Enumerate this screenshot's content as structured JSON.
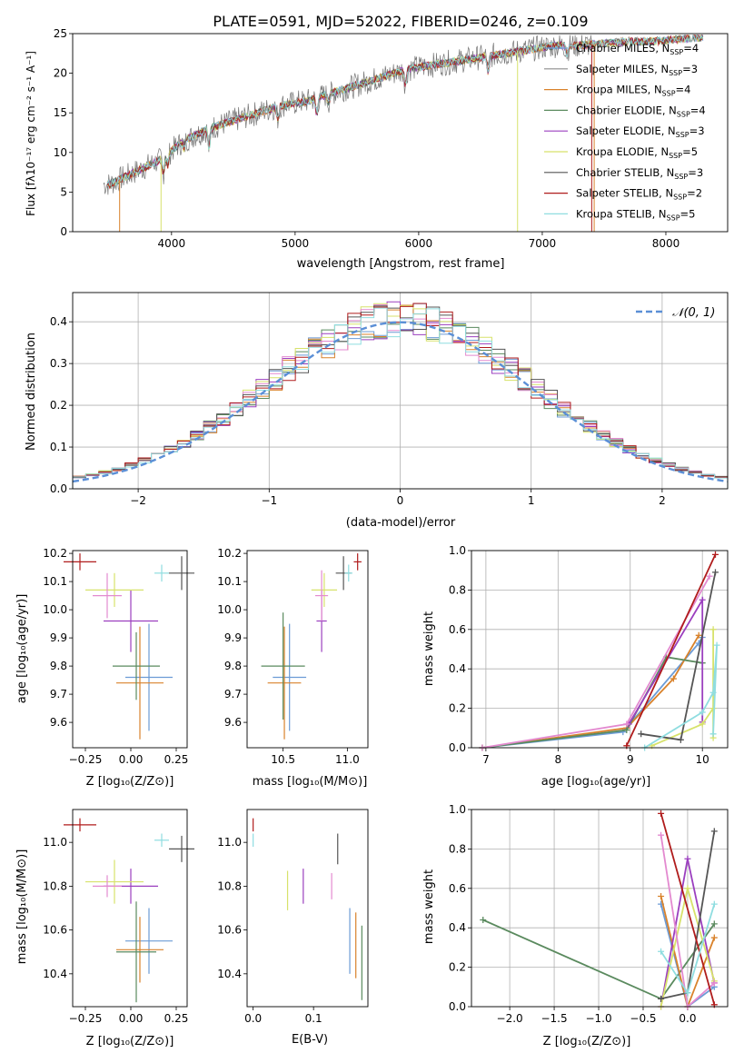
{
  "figure": {
    "title": "PLATE=0591, MJD=52022, FIBERID=0246, z=0.109"
  },
  "colors": {
    "Chabrier MILES": "#6b9bd6",
    "Salpeter MILES": "#8c8c8c",
    "Kroupa MILES": "#d9822b",
    "Chabrier ELODIE": "#5a8a5e",
    "Salpeter ELODIE": "#9b3fbf",
    "Kroupa ELODIE": "#d7e26b",
    "Chabrier STELIB": "#555555",
    "Salpeter STELIB": "#b01c1c",
    "Kroupa STELIB": "#8fdde0",
    "Salpeter MILES errbar": "#e38ad0",
    "Normal": "#5b8fd6"
  },
  "chart_data": [
    {
      "id": "spectrum",
      "type": "line",
      "title": "PLATE=0591, MJD=52022, FIBERID=0246, z=0.109",
      "xlabel": "wavelength [Angstrom, rest frame]",
      "ylabel": "Flux [fλ10⁻¹⁷ erg cm⁻² s⁻¹ A⁻¹]",
      "xlim": [
        3200,
        8500
      ],
      "ylim": [
        0,
        25
      ],
      "xticks": [
        "4000",
        "5000",
        "6000",
        "7000",
        "8000"
      ],
      "yticks": [
        "0",
        "5",
        "10",
        "15",
        "20",
        "25"
      ],
      "legend": [
        "Chabrier MILES, N_SSP=4",
        "Salpeter MILES, N_SSP=3",
        "Kroupa MILES, N_SSP=4",
        "Chabrier ELODIE, N_SSP=4",
        "Salpeter ELODIE, N_SSP=3",
        "Kroupa ELODIE, N_SSP=5",
        "Chabrier STELIB, N_SSP=3",
        "Salpeter STELIB, N_SSP=2",
        "Kroupa STELIB, N_SSP=5"
      ],
      "legend_display": [
        {
          "pre": "Chabrier MILES, N",
          "sub": "SSP",
          "post": "=4"
        },
        {
          "pre": "Salpeter MILES, N",
          "sub": "SSP",
          "post": "=3"
        },
        {
          "pre": "Kroupa MILES, N",
          "sub": "SSP",
          "post": "=4"
        },
        {
          "pre": "Chabrier ELODIE, N",
          "sub": "SSP",
          "post": "=4"
        },
        {
          "pre": "Salpeter ELODIE, N",
          "sub": "SSP",
          "post": "=3"
        },
        {
          "pre": "Kroupa ELODIE, N",
          "sub": "SSP",
          "post": "=5"
        },
        {
          "pre": "Chabrier STELIB, N",
          "sub": "SSP",
          "post": "=3"
        },
        {
          "pre": "Salpeter STELIB, N",
          "sub": "SSP",
          "post": "=2"
        },
        {
          "pre": "Kroupa STELIB, N",
          "sub": "SSP",
          "post": "=5"
        }
      ],
      "legend_colors": [
        "#6b9bd6",
        "#8c8c8c",
        "#d9822b",
        "#5a8a5e",
        "#9b3fbf",
        "#d7e26b",
        "#555555",
        "#b01c1c",
        "#8fdde0"
      ],
      "legend_placement": "right",
      "continuum": [
        [
          3500,
          6.0
        ],
        [
          3700,
          7.5
        ],
        [
          3900,
          9.0
        ],
        [
          4100,
          11.5
        ],
        [
          4300,
          13.0
        ],
        [
          4500,
          14.0
        ],
        [
          4700,
          15.0
        ],
        [
          4900,
          16.0
        ],
        [
          5100,
          16.5
        ],
        [
          5300,
          17.5
        ],
        [
          5500,
          18.5
        ],
        [
          5700,
          19.5
        ],
        [
          5900,
          20.5
        ],
        [
          6100,
          21.0
        ],
        [
          6300,
          21.5
        ],
        [
          6500,
          22.0
        ],
        [
          6700,
          22.5
        ],
        [
          6900,
          23.0
        ],
        [
          7100,
          23.5
        ],
        [
          7300,
          23.5
        ],
        [
          7500,
          23.8
        ],
        [
          7700,
          24.0
        ],
        [
          7900,
          24.0
        ],
        [
          8100,
          24.3
        ],
        [
          8300,
          24.5
        ]
      ],
      "absorption_dips": [
        [
          3934,
          2.0
        ],
        [
          3969,
          1.5
        ],
        [
          4102,
          1.0
        ],
        [
          4304,
          2.5
        ],
        [
          4861,
          1.5
        ],
        [
          5175,
          2.0
        ],
        [
          5270,
          1.0
        ],
        [
          5893,
          2.0
        ],
        [
          6563,
          2.0
        ],
        [
          7200,
          1.0
        ]
      ]
    },
    {
      "id": "residuals",
      "type": "line",
      "xlabel": "(data-model)/error",
      "ylabel": "Normed distribution",
      "xlim": [
        -2.5,
        2.5
      ],
      "ylim": [
        0,
        0.47
      ],
      "xticks": [
        "−2",
        "−1",
        "0",
        "1",
        "2"
      ],
      "yticks": [
        "0.0",
        "0.1",
        "0.2",
        "0.3",
        "0.4"
      ],
      "grid": true,
      "legend": [
        "𝒩(0, 1)"
      ],
      "legend_placement": "top-right",
      "series": [
        {
          "name": "𝒩(0, 1)",
          "mu": 0,
          "sigma": 1
        }
      ]
    },
    {
      "id": "age-vs-Z",
      "type": "scatter",
      "xlabel": "Z [log₁₀(Z/Z⊙)]",
      "ylabel": "age  [log₁₀(age/yr)]",
      "xlim": [
        -0.32,
        0.31
      ],
      "ylim": [
        9.51,
        10.21
      ],
      "xticks": [
        "−0.25",
        "0.00",
        "0.25"
      ],
      "yticks": [
        "9.6",
        "9.7",
        "9.8",
        "9.9",
        "10.0",
        "10.1",
        "10.2"
      ],
      "points": [
        {
          "x": 0.1,
          "y": 9.76,
          "xerr": 0.13,
          "yerr": 0.19,
          "color": "#6b9bd6"
        },
        {
          "x": 0.05,
          "y": 9.74,
          "xerr": 0.13,
          "yerr": 0.2,
          "color": "#d9822b"
        },
        {
          "x": 0.03,
          "y": 9.8,
          "xerr": 0.13,
          "yerr": 0.12,
          "color": "#5a8a5e"
        },
        {
          "x": 0.0,
          "y": 9.96,
          "xerr": 0.15,
          "yerr": 0.11,
          "color": "#9b3fbf"
        },
        {
          "x": -0.09,
          "y": 10.07,
          "xerr": 0.16,
          "yerr": 0.06,
          "color": "#d7e26b"
        },
        {
          "x": -0.13,
          "y": 10.05,
          "xerr": 0.08,
          "yerr": 0.08,
          "color": "#e38ad0"
        },
        {
          "x": 0.28,
          "y": 10.13,
          "xerr": 0.07,
          "yerr": 0.06,
          "color": "#555555"
        },
        {
          "x": -0.28,
          "y": 10.17,
          "xerr": 0.09,
          "yerr": 0.03,
          "color": "#b01c1c"
        },
        {
          "x": 0.17,
          "y": 10.13,
          "xerr": 0.04,
          "yerr": 0.03,
          "color": "#8fdde0"
        }
      ]
    },
    {
      "id": "age-vs-mass",
      "type": "scatter",
      "xlabel": "mass [log₁₀(M/M⊙)]",
      "ylabel": "",
      "xlim": [
        10.22,
        11.16
      ],
      "ylim": [
        9.51,
        10.21
      ],
      "xticks": [
        "10.5",
        "11.0"
      ],
      "yticks": [
        "9.6",
        "9.7",
        "9.8",
        "9.9",
        "10.0",
        "10.1",
        "10.2"
      ],
      "points": [
        {
          "x": 10.55,
          "y": 9.76,
          "xerr": 0.13,
          "yerr": 0.19,
          "color": "#6b9bd6"
        },
        {
          "x": 10.51,
          "y": 9.74,
          "xerr": 0.13,
          "yerr": 0.2,
          "color": "#d9822b"
        },
        {
          "x": 10.5,
          "y": 9.8,
          "xerr": 0.17,
          "yerr": 0.19,
          "color": "#5a8a5e"
        },
        {
          "x": 10.8,
          "y": 9.96,
          "xerr": 0.04,
          "yerr": 0.11,
          "color": "#9b3fbf"
        },
        {
          "x": 10.82,
          "y": 10.07,
          "xerr": 0.1,
          "yerr": 0.06,
          "color": "#d7e26b"
        },
        {
          "x": 10.8,
          "y": 10.05,
          "xerr": 0.05,
          "yerr": 0.09,
          "color": "#e38ad0"
        },
        {
          "x": 10.97,
          "y": 10.13,
          "xerr": 0.06,
          "yerr": 0.06,
          "color": "#555555"
        },
        {
          "x": 11.08,
          "y": 10.17,
          "xerr": 0.03,
          "yerr": 0.03,
          "color": "#b01c1c"
        },
        {
          "x": 11.01,
          "y": 10.13,
          "xerr": 0.03,
          "yerr": 0.03,
          "color": "#8fdde0"
        }
      ]
    },
    {
      "id": "massweight-vs-age",
      "type": "line",
      "xlabel": "age  [log₁₀(age/yr)]",
      "ylabel": "mass weight",
      "xlim": [
        6.8,
        10.35
      ],
      "ylim": [
        0,
        1
      ],
      "xticks": [
        "7",
        "8",
        "9",
        "10"
      ],
      "yticks": [
        "0.0",
        "0.2",
        "0.4",
        "0.6",
        "0.8",
        "1.0"
      ],
      "grid": true,
      "series": [
        {
          "color": "#6b9bd6",
          "x": [
            6.95,
            8.9,
            9.95,
            10.0
          ],
          "y": [
            0.0,
            0.08,
            0.53,
            0.56
          ]
        },
        {
          "color": "#d9822b",
          "x": [
            6.95,
            8.95,
            9.6,
            9.95
          ],
          "y": [
            0.0,
            0.1,
            0.35,
            0.57
          ]
        },
        {
          "color": "#5a8a5e",
          "x": [
            6.95,
            8.95,
            9.5,
            10.0
          ],
          "y": [
            0.0,
            0.09,
            0.46,
            0.43
          ]
        },
        {
          "color": "#9b3fbf",
          "x": [
            8.98,
            10.0,
            10.0
          ],
          "y": [
            0.12,
            0.75,
            0.13
          ]
        },
        {
          "color": "#d7e26b",
          "x": [
            9.3,
            10.0,
            10.15,
            10.15,
            10.15
          ],
          "y": [
            0.01,
            0.12,
            0.2,
            0.6,
            0.05
          ]
        },
        {
          "color": "#e38ad0",
          "x": [
            6.95,
            8.95,
            10.1
          ],
          "y": [
            0.0,
            0.12,
            0.87
          ]
        },
        {
          "color": "#555555",
          "x": [
            9.15,
            9.7,
            10.18
          ],
          "y": [
            0.07,
            0.04,
            0.89
          ]
        },
        {
          "color": "#b01c1c",
          "x": [
            8.95,
            10.18
          ],
          "y": [
            0.01,
            0.98
          ]
        },
        {
          "color": "#8fdde0",
          "x": [
            9.2,
            10.0,
            10.15,
            10.2,
            10.15
          ],
          "y": [
            0.0,
            0.18,
            0.28,
            0.52,
            0.07
          ]
        }
      ]
    },
    {
      "id": "mass-vs-Z",
      "type": "scatter",
      "xlabel": "Z [log₁₀(Z/Z⊙)]",
      "ylabel": "mass [log₁₀(M/M⊙)]",
      "xlim": [
        -0.32,
        0.31
      ],
      "ylim": [
        10.25,
        11.15
      ],
      "xticks": [
        "−0.25",
        "0.00",
        "0.25"
      ],
      "yticks": [
        "10.4",
        "10.6",
        "10.8",
        "11.0"
      ],
      "points": [
        {
          "x": 0.1,
          "y": 10.55,
          "xerr": 0.13,
          "yerr": 0.15,
          "color": "#6b9bd6"
        },
        {
          "x": 0.05,
          "y": 10.51,
          "xerr": 0.13,
          "yerr": 0.15,
          "color": "#d9822b"
        },
        {
          "x": 0.03,
          "y": 10.5,
          "xerr": 0.11,
          "yerr": 0.23,
          "color": "#5a8a5e"
        },
        {
          "x": 0.0,
          "y": 10.8,
          "xerr": 0.15,
          "yerr": 0.08,
          "color": "#9b3fbf"
        },
        {
          "x": -0.09,
          "y": 10.82,
          "xerr": 0.16,
          "yerr": 0.1,
          "color": "#d7e26b"
        },
        {
          "x": -0.13,
          "y": 10.8,
          "xerr": 0.08,
          "yerr": 0.05,
          "color": "#e38ad0"
        },
        {
          "x": 0.28,
          "y": 10.97,
          "xerr": 0.07,
          "yerr": 0.06,
          "color": "#555555"
        },
        {
          "x": -0.28,
          "y": 11.08,
          "xerr": 0.09,
          "yerr": 0.03,
          "color": "#b01c1c"
        },
        {
          "x": 0.17,
          "y": 11.01,
          "xerr": 0.04,
          "yerr": 0.03,
          "color": "#8fdde0"
        }
      ]
    },
    {
      "id": "mass-vs-EBV",
      "type": "scatter",
      "xlabel": "E(B-V)",
      "ylabel": "",
      "xlim": [
        -0.01,
        0.19
      ],
      "ylim": [
        10.25,
        11.15
      ],
      "xticks": [
        "0.0",
        "0.1"
      ],
      "yticks": [
        "10.4",
        "10.6",
        "10.8",
        "11.0"
      ],
      "points": [
        {
          "x": 0.16,
          "y": 10.55,
          "xerr": 0,
          "yerr": 0.15,
          "color": "#6b9bd6"
        },
        {
          "x": 0.17,
          "y": 10.53,
          "xerr": 0,
          "yerr": 0.15,
          "color": "#d9822b"
        },
        {
          "x": 0.18,
          "y": 10.45,
          "xerr": 0,
          "yerr": 0.17,
          "color": "#5a8a5e"
        },
        {
          "x": 0.083,
          "y": 10.8,
          "xerr": 0,
          "yerr": 0.08,
          "color": "#9b3fbf"
        },
        {
          "x": 0.057,
          "y": 10.78,
          "xerr": 0,
          "yerr": 0.09,
          "color": "#d7e26b"
        },
        {
          "x": 0.13,
          "y": 10.8,
          "xerr": 0,
          "yerr": 0.06,
          "color": "#e38ad0"
        },
        {
          "x": 0.14,
          "y": 10.97,
          "xerr": 0,
          "yerr": 0.07,
          "color": "#555555"
        },
        {
          "x": 0.0,
          "y": 11.08,
          "xerr": 0,
          "yerr": 0.03,
          "color": "#b01c1c"
        },
        {
          "x": 0.0,
          "y": 11.01,
          "xerr": 0,
          "yerr": 0.03,
          "color": "#8fdde0"
        }
      ]
    },
    {
      "id": "massweight-vs-Z",
      "type": "line",
      "xlabel": "Z [log₁₀(Z/Z⊙)]",
      "ylabel": "mass weight",
      "xlim": [
        -2.43,
        0.45
      ],
      "ylim": [
        0,
        1
      ],
      "xticks": [
        "−2.0",
        "−1.5",
        "−1.0",
        "−0.5",
        "0.0"
      ],
      "yticks": [
        "0.0",
        "0.2",
        "0.4",
        "0.6",
        "0.8",
        "1.0"
      ],
      "grid": true,
      "series": [
        {
          "color": "#5a8a5e",
          "x": [
            -2.3,
            -0.3,
            0.3
          ],
          "y": [
            0.44,
            0.04,
            0.42
          ]
        },
        {
          "color": "#6b9bd6",
          "x": [
            -0.3,
            0.0,
            0.3
          ],
          "y": [
            0.52,
            0.0,
            0.1
          ]
        },
        {
          "color": "#d9822b",
          "x": [
            -0.3,
            0.0,
            0.3
          ],
          "y": [
            0.56,
            0.0,
            0.35
          ]
        },
        {
          "color": "#9b3fbf",
          "x": [
            -0.3,
            0.0,
            0.3
          ],
          "y": [
            0.0,
            0.75,
            0.12
          ]
        },
        {
          "color": "#d7e26b",
          "x": [
            -0.3,
            0.0,
            0.3
          ],
          "y": [
            0.0,
            0.6,
            0.13
          ]
        },
        {
          "color": "#e38ad0",
          "x": [
            -0.3,
            0.0,
            0.3
          ],
          "y": [
            0.87,
            0.0,
            0.12
          ]
        },
        {
          "color": "#555555",
          "x": [
            -0.3,
            0.0,
            0.3
          ],
          "y": [
            0.04,
            0.07,
            0.89
          ]
        },
        {
          "color": "#b01c1c",
          "x": [
            -0.3,
            0.3
          ],
          "y": [
            0.98,
            0.01
          ]
        },
        {
          "color": "#8fdde0",
          "x": [
            -0.3,
            0.0,
            0.3
          ],
          "y": [
            0.28,
            0.07,
            0.52
          ]
        }
      ]
    }
  ]
}
